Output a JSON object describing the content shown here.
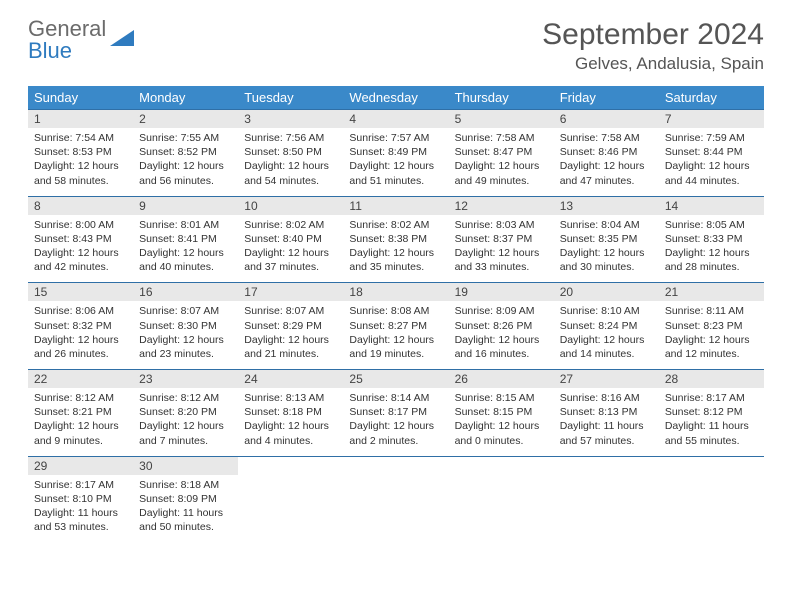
{
  "logo": {
    "line1": "General",
    "line2": "Blue"
  },
  "title": "September 2024",
  "location": "Gelves, Andalusia, Spain",
  "colors": {
    "header_bg": "#3a89c9",
    "border": "#2f6fa6",
    "daynum_bg": "#e8e8e8",
    "text": "#333333",
    "logo_gray": "#6b6b6b",
    "logo_blue": "#2f7bbf"
  },
  "weekdays": [
    "Sunday",
    "Monday",
    "Tuesday",
    "Wednesday",
    "Thursday",
    "Friday",
    "Saturday"
  ],
  "days": [
    {
      "n": "1",
      "sunrise": "7:54 AM",
      "sunset": "8:53 PM",
      "dl": "12 hours and 58 minutes."
    },
    {
      "n": "2",
      "sunrise": "7:55 AM",
      "sunset": "8:52 PM",
      "dl": "12 hours and 56 minutes."
    },
    {
      "n": "3",
      "sunrise": "7:56 AM",
      "sunset": "8:50 PM",
      "dl": "12 hours and 54 minutes."
    },
    {
      "n": "4",
      "sunrise": "7:57 AM",
      "sunset": "8:49 PM",
      "dl": "12 hours and 51 minutes."
    },
    {
      "n": "5",
      "sunrise": "7:58 AM",
      "sunset": "8:47 PM",
      "dl": "12 hours and 49 minutes."
    },
    {
      "n": "6",
      "sunrise": "7:58 AM",
      "sunset": "8:46 PM",
      "dl": "12 hours and 47 minutes."
    },
    {
      "n": "7",
      "sunrise": "7:59 AM",
      "sunset": "8:44 PM",
      "dl": "12 hours and 44 minutes."
    },
    {
      "n": "8",
      "sunrise": "8:00 AM",
      "sunset": "8:43 PM",
      "dl": "12 hours and 42 minutes."
    },
    {
      "n": "9",
      "sunrise": "8:01 AM",
      "sunset": "8:41 PM",
      "dl": "12 hours and 40 minutes."
    },
    {
      "n": "10",
      "sunrise": "8:02 AM",
      "sunset": "8:40 PM",
      "dl": "12 hours and 37 minutes."
    },
    {
      "n": "11",
      "sunrise": "8:02 AM",
      "sunset": "8:38 PM",
      "dl": "12 hours and 35 minutes."
    },
    {
      "n": "12",
      "sunrise": "8:03 AM",
      "sunset": "8:37 PM",
      "dl": "12 hours and 33 minutes."
    },
    {
      "n": "13",
      "sunrise": "8:04 AM",
      "sunset": "8:35 PM",
      "dl": "12 hours and 30 minutes."
    },
    {
      "n": "14",
      "sunrise": "8:05 AM",
      "sunset": "8:33 PM",
      "dl": "12 hours and 28 minutes."
    },
    {
      "n": "15",
      "sunrise": "8:06 AM",
      "sunset": "8:32 PM",
      "dl": "12 hours and 26 minutes."
    },
    {
      "n": "16",
      "sunrise": "8:07 AM",
      "sunset": "8:30 PM",
      "dl": "12 hours and 23 minutes."
    },
    {
      "n": "17",
      "sunrise": "8:07 AM",
      "sunset": "8:29 PM",
      "dl": "12 hours and 21 minutes."
    },
    {
      "n": "18",
      "sunrise": "8:08 AM",
      "sunset": "8:27 PM",
      "dl": "12 hours and 19 minutes."
    },
    {
      "n": "19",
      "sunrise": "8:09 AM",
      "sunset": "8:26 PM",
      "dl": "12 hours and 16 minutes."
    },
    {
      "n": "20",
      "sunrise": "8:10 AM",
      "sunset": "8:24 PM",
      "dl": "12 hours and 14 minutes."
    },
    {
      "n": "21",
      "sunrise": "8:11 AM",
      "sunset": "8:23 PM",
      "dl": "12 hours and 12 minutes."
    },
    {
      "n": "22",
      "sunrise": "8:12 AM",
      "sunset": "8:21 PM",
      "dl": "12 hours and 9 minutes."
    },
    {
      "n": "23",
      "sunrise": "8:12 AM",
      "sunset": "8:20 PM",
      "dl": "12 hours and 7 minutes."
    },
    {
      "n": "24",
      "sunrise": "8:13 AM",
      "sunset": "8:18 PM",
      "dl": "12 hours and 4 minutes."
    },
    {
      "n": "25",
      "sunrise": "8:14 AM",
      "sunset": "8:17 PM",
      "dl": "12 hours and 2 minutes."
    },
    {
      "n": "26",
      "sunrise": "8:15 AM",
      "sunset": "8:15 PM",
      "dl": "12 hours and 0 minutes."
    },
    {
      "n": "27",
      "sunrise": "8:16 AM",
      "sunset": "8:13 PM",
      "dl": "11 hours and 57 minutes."
    },
    {
      "n": "28",
      "sunrise": "8:17 AM",
      "sunset": "8:12 PM",
      "dl": "11 hours and 55 minutes."
    },
    {
      "n": "29",
      "sunrise": "8:17 AM",
      "sunset": "8:10 PM",
      "dl": "11 hours and 53 minutes."
    },
    {
      "n": "30",
      "sunrise": "8:18 AM",
      "sunset": "8:09 PM",
      "dl": "11 hours and 50 minutes."
    }
  ],
  "labels": {
    "sunrise": "Sunrise:",
    "sunset": "Sunset:",
    "daylight": "Daylight:"
  }
}
